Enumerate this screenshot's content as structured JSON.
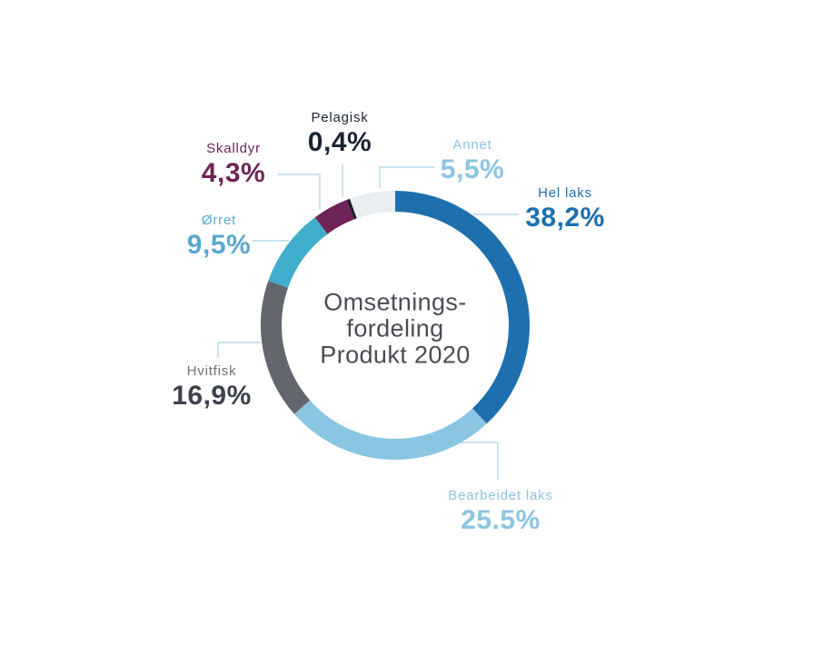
{
  "chart_data": {
    "type": "pie",
    "variant": "donut",
    "title": "Omsetnings-fordeling Produkt 2020",
    "title_lines": [
      "Omsetnings-",
      "fordeling",
      "Produkt 2020"
    ],
    "title_color": "#494d54",
    "background_color": "#ffffff",
    "leader_line_color": "#b7dbea",
    "legend_position": "outside-labels-with-leader-lines",
    "order_note": "segments listed clockwise starting at 12 o'clock",
    "segments": [
      {
        "id": "hel-laks",
        "name": "Hel laks",
        "value": 38.2,
        "value_label": "38,2%",
        "color": "#1d6fae",
        "name_color": "#1d6fae",
        "value_color": "#1d6fae"
      },
      {
        "id": "bearbeidet-laks",
        "name": "Bearbeidet laks",
        "value": 25.5,
        "value_label": "25.5%",
        "color": "#8ac6e2",
        "name_color": "#8cc5e2",
        "value_color": "#8cc5e2"
      },
      {
        "id": "hvitfisk",
        "name": "Hvitfisk",
        "value": 16.9,
        "value_label": "16,9%",
        "color": "#64666d",
        "name_color": "#6e7077",
        "value_color": "#3d414b"
      },
      {
        "id": "orret",
        "name": "Ørret",
        "value": 9.5,
        "value_label": "9,5%",
        "color": "#3fadcb",
        "name_color": "#58a8ce",
        "value_color": "#58a8ce"
      },
      {
        "id": "skalldyr",
        "name": "Skalldyr",
        "value": 4.3,
        "value_label": "4,3%",
        "color": "#6f2457",
        "name_color": "#6f2457",
        "value_color": "#6f2457"
      },
      {
        "id": "pelagisk",
        "name": "Pelagisk",
        "value": 0.4,
        "value_label": "0,4%",
        "color": "#1a1f2b",
        "name_color": "#1b2433",
        "value_color": "#1b2433"
      },
      {
        "id": "annet",
        "name": "Annet",
        "value": 5.5,
        "value_label": "5,5%",
        "color": "#e9edf0",
        "name_color": "#8cc5e2",
        "value_color": "#8cc5e2"
      }
    ]
  }
}
